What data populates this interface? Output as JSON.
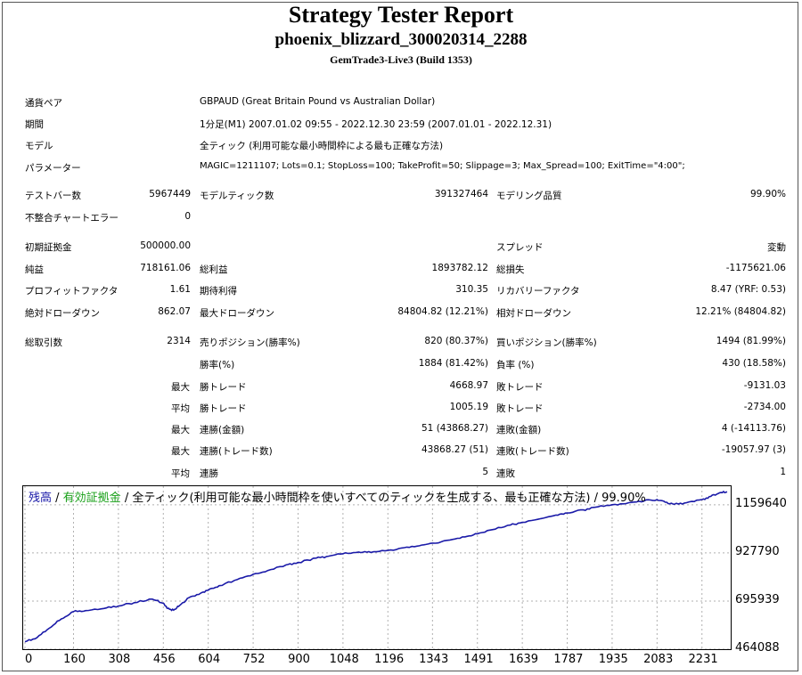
{
  "header": {
    "title": "Strategy Tester Report",
    "subtitle": "phoenix_blizzard_300020314_2288",
    "server": "GemTrade3-Live3 (Build 1353)"
  },
  "info": {
    "pair_label": "通貨ペア",
    "pair_value": "GBPAUD (Great Britain Pound vs Australian Dollar)",
    "period_label": "期間",
    "period_value": "1分足(M1) 2007.01.02 09:55 - 2022.12.30 23:59 (2007.01.01 - 2022.12.31)",
    "model_label": "モデル",
    "model_value": "全ティック (利用可能な最小時間枠による最も正確な方法)",
    "params_label": "パラメーター",
    "params_value": "MAGIC=1211107; Lots=0.1; StopLoss=100; TakeProfit=50; Slippage=3; Max_Spread=100; ExitTime=\"4:00\";"
  },
  "stats": {
    "bars_label": "テストバー数",
    "bars_value": "5967449",
    "ticks_label": "モデルティック数",
    "ticks_value": "391327464",
    "quality_label": "モデリング品質",
    "quality_value": "99.90%",
    "errors_label": "不整合チャートエラー",
    "errors_value": "0",
    "deposit_label": "初期証拠金",
    "deposit_value": "500000.00",
    "spread_label": "スプレッド",
    "spread_value": "変動",
    "net_label": "純益",
    "net_value": "718161.06",
    "gross_profit_label": "総利益",
    "gross_profit_value": "1893782.12",
    "gross_loss_label": "総損失",
    "gross_loss_value": "-1175621.06",
    "pf_label": "プロフィットファクタ",
    "pf_value": "1.61",
    "expected_label": "期待利得",
    "expected_value": "310.35",
    "recovery_label": "リカバリーファクタ",
    "recovery_value": "8.47 (YRF: 0.53)",
    "abs_dd_label": "絶対ドローダウン",
    "abs_dd_value": "862.07",
    "max_dd_label": "最大ドローダウン",
    "max_dd_value": "84804.82 (12.21%)",
    "rel_dd_label": "相対ドローダウン",
    "rel_dd_value": "12.21% (84804.82)",
    "trades_label": "総取引数",
    "trades_value": "2314",
    "short_label": "売りポジション(勝率%)",
    "short_value": "820 (80.37%)",
    "long_label": "買いポジション(勝率%)",
    "long_value": "1494 (81.99%)",
    "winrate_label": "勝率(%)",
    "winrate_value": "1884 (81.42%)",
    "lossrate_label": "負率 (%)",
    "lossrate_value": "430 (18.58%)",
    "max_prefix": "最大",
    "avg_prefix": "平均",
    "max_win_label": "勝トレード",
    "max_win_value": "4668.97",
    "max_loss_label": "敗トレード",
    "max_loss_value": "-9131.03",
    "avg_win_label": "勝トレード",
    "avg_win_value": "1005.19",
    "avg_loss_label": "敗トレード",
    "avg_loss_value": "-2734.00",
    "consec_win_amt_label": "連勝(金額)",
    "consec_win_amt_value": "51 (43868.27)",
    "consec_loss_amt_label": "連敗(金額)",
    "consec_loss_amt_value": "4 (-14113.76)",
    "consec_win_cnt_label": "連勝(トレード数)",
    "consec_win_cnt_value": "43868.27 (51)",
    "consec_loss_cnt_label": "連敗(トレード数)",
    "consec_loss_cnt_value": "-19057.97 (3)",
    "avg_consec_win_label": "連勝",
    "avg_consec_win_value": "5",
    "avg_consec_loss_label": "連敗",
    "avg_consec_loss_value": "1"
  },
  "chart_legend": {
    "balance": "残高",
    "sep1": " / ",
    "equity": "有効証拠金",
    "rest": " / 全ティック(利用可能な最小時間枠を使いすべてのティックを生成する、最も正確な方法) / 99.90%",
    "balance_color": "#1a1aa8",
    "equity_color": "#18a018"
  },
  "chart_data": {
    "type": "line",
    "x_ticks": [
      "0",
      "160",
      "308",
      "456",
      "604",
      "752",
      "900",
      "1048",
      "1196",
      "1343",
      "1491",
      "1639",
      "1787",
      "1935",
      "2083",
      "2231"
    ],
    "y_ticks": [
      "1159640",
      "927790",
      "695939",
      "464088"
    ],
    "ylim": [
      464088,
      1232000
    ],
    "xlim": [
      0,
      2314
    ],
    "series": [
      {
        "color": "#1a1aa8",
        "x": [
          0,
          40,
          80,
          120,
          160,
          200,
          260,
          308,
          360,
          420,
          456,
          470,
          490,
          510,
          540,
          580,
          604,
          640,
          700,
          752,
          800,
          860,
          900,
          960,
          1000,
          1048,
          1100,
          1140,
          1196,
          1250,
          1300,
          1343,
          1400,
          1450,
          1491,
          1540,
          1600,
          1639,
          1700,
          1750,
          1787,
          1840,
          1880,
          1935,
          1990,
          2040,
          2083,
          2110,
          2140,
          2180,
          2231,
          2260,
          2290,
          2314
        ],
        "y": [
          500000,
          520000,
          565000,
          610000,
          645000,
          650000,
          660000,
          672000,
          688000,
          705000,
          685000,
          660000,
          652000,
          675000,
          712000,
          735000,
          748000,
          770000,
          800000,
          825000,
          843000,
          870000,
          882000,
          903000,
          912000,
          924000,
          932000,
          930000,
          940000,
          953000,
          962000,
          975000,
          990000,
          1005000,
          1020000,
          1040000,
          1062000,
          1075000,
          1093000,
          1110000,
          1120000,
          1135000,
          1148000,
          1160000,
          1170000,
          1178000,
          1185000,
          1172000,
          1162000,
          1170000,
          1185000,
          1200000,
          1218000,
          1222000
        ]
      }
    ]
  }
}
